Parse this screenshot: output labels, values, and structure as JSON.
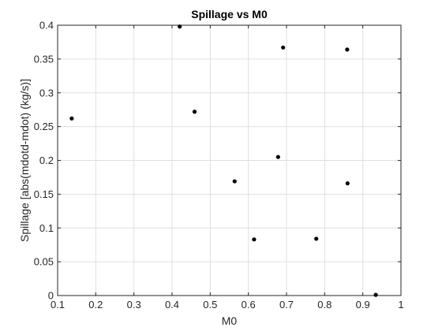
{
  "colors": {
    "figure_background": "#ffffff",
    "axes_background": "#ffffff",
    "grid": "#dfdfdf",
    "axis_line": "#262626",
    "marker": "#000000"
  },
  "chart_data": {
    "type": "scatter",
    "title": "Spillage vs M0",
    "xlabel": "M0",
    "ylabel": "Spillage [abs(mdotd-mdot) (kg/s)]",
    "xlim": [
      0.1,
      1.0
    ],
    "ylim": [
      0.0,
      0.4
    ],
    "xticks": [
      "0.1",
      "0.2",
      "0.3",
      "0.4",
      "0.5",
      "0.6",
      "0.7",
      "0.8",
      "0.9",
      "1"
    ],
    "yticks": [
      "0",
      "0.05",
      "0.1",
      "0.15",
      "0.2",
      "0.25",
      "0.3",
      "0.35",
      "0.4"
    ],
    "grid": true,
    "box": true,
    "marker": "filled-circle",
    "marker_color": "#000000",
    "points": [
      {
        "x": 0.137,
        "y": 0.262
      },
      {
        "x": 0.42,
        "y": 0.398
      },
      {
        "x": 0.459,
        "y": 0.272
      },
      {
        "x": 0.564,
        "y": 0.169
      },
      {
        "x": 0.615,
        "y": 0.083
      },
      {
        "x": 0.678,
        "y": 0.205
      },
      {
        "x": 0.691,
        "y": 0.367
      },
      {
        "x": 0.778,
        "y": 0.084
      },
      {
        "x": 0.859,
        "y": 0.364
      },
      {
        "x": 0.86,
        "y": 0.166
      },
      {
        "x": 0.934,
        "y": 0.001
      }
    ]
  }
}
